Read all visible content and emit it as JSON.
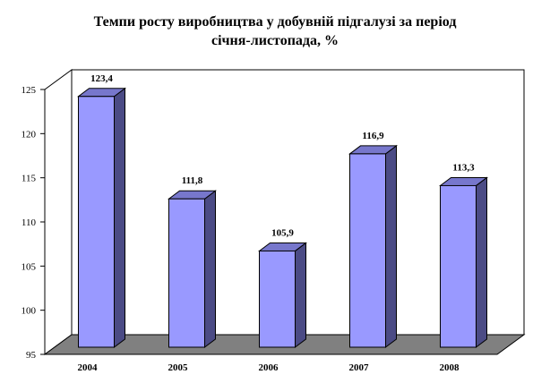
{
  "chart_data": {
    "type": "bar",
    "title": "Темпи росту виробництва у добувній підгалузі за період січня-листопада, %",
    "title_lines": [
      "Темпи росту виробництва у добувній підгалузі за період",
      "січня-листопада, %"
    ],
    "categories": [
      "2004",
      "2005",
      "2006",
      "2007",
      "2008"
    ],
    "values": [
      123.4,
      111.8,
      105.9,
      116.9,
      113.3
    ],
    "data_labels": [
      "123,4",
      "111,8",
      "105,9",
      "116,9",
      "113,3"
    ],
    "ylim": [
      95,
      125
    ],
    "yticks": [
      "95",
      "100",
      "105",
      "110",
      "115",
      "120",
      "125"
    ],
    "xlabel": "",
    "ylabel": "",
    "grid": false,
    "legend": "none",
    "style": "3d-column"
  },
  "colors": {
    "bar_front": "#9999FF",
    "bar_side": "#4B4B85",
    "bar_top": "#7777CC",
    "floor": "#808080",
    "wall": "#FFFFFF",
    "outline": "#000000"
  }
}
